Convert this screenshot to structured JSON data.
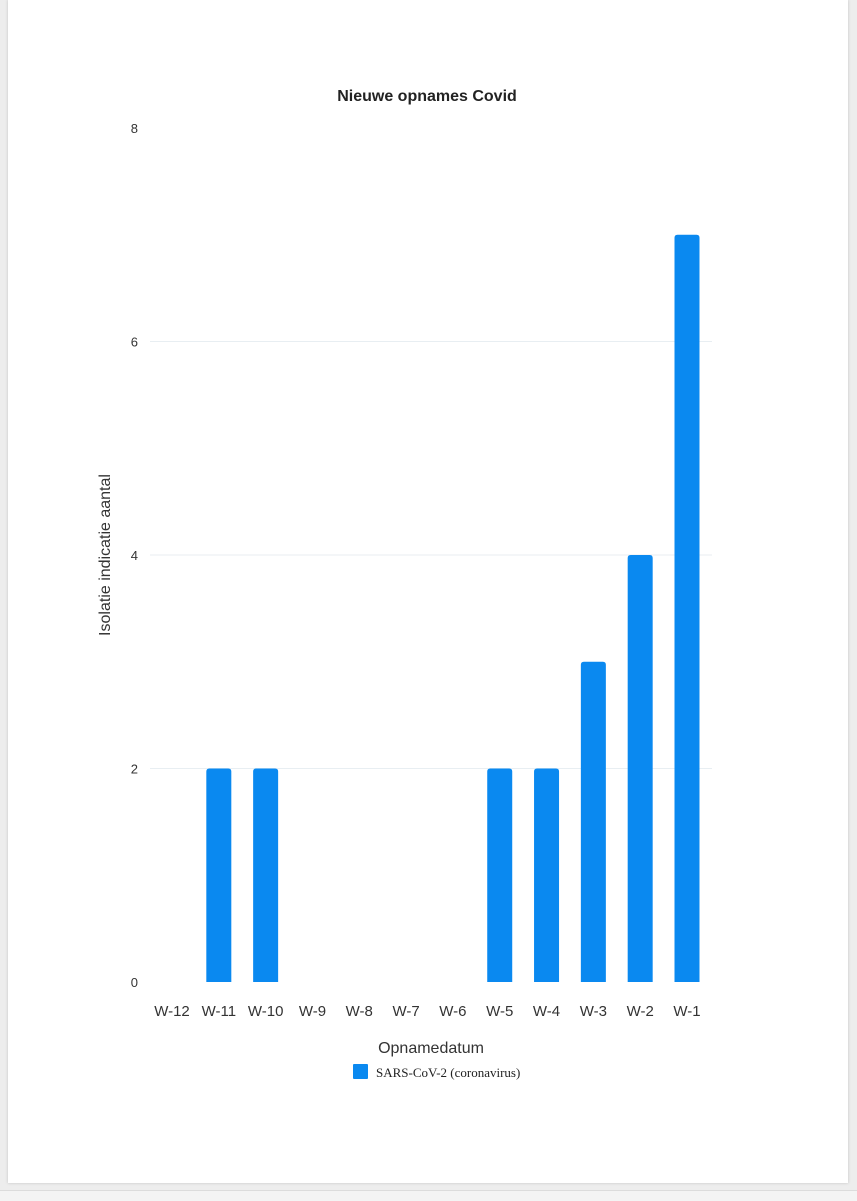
{
  "chart_data": {
    "type": "bar",
    "title": "Nieuwe opnames Covid",
    "xlabel": "Opnamedatum",
    "ylabel": "Isolatie indicatie aantal",
    "categories": [
      "W-12",
      "W-11",
      "W-10",
      "W-9",
      "W-8",
      "W-7",
      "W-6",
      "W-5",
      "W-4",
      "W-3",
      "W-2",
      "W-1"
    ],
    "series": [
      {
        "name": "SARS-CoV-2 (coronavirus)",
        "color": "#0a89f0",
        "values": [
          0,
          2,
          2,
          0,
          0,
          0,
          0,
          2,
          2,
          3,
          4,
          7
        ]
      }
    ],
    "ylim": [
      0,
      8
    ],
    "yticks": [
      "0",
      "2",
      "4",
      "6",
      "8"
    ],
    "grid": true,
    "legend_position": "bottom"
  }
}
